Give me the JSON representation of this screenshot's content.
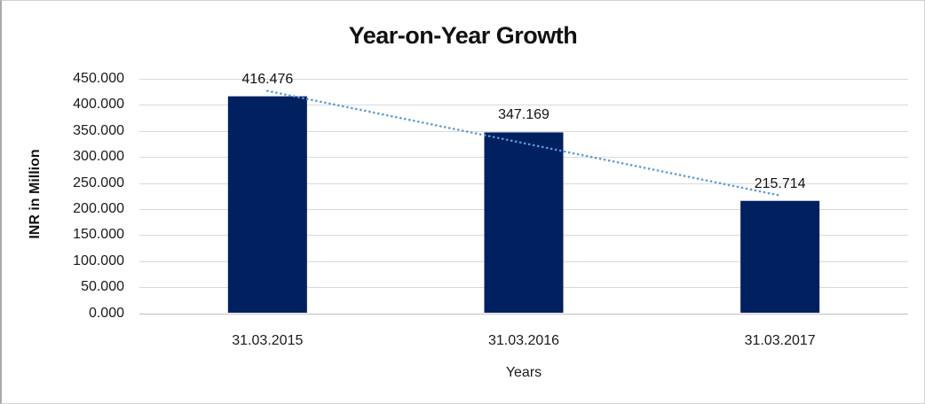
{
  "chart_data": {
    "type": "bar",
    "title": "Year-on-Year Growth",
    "xlabel": "Years",
    "ylabel": "INR in Million",
    "categories": [
      "31.03.2015",
      "31.03.2016",
      "31.03.2017"
    ],
    "values": [
      416.476,
      347.169,
      215.714
    ],
    "data_labels": [
      "416.476",
      "347.169",
      "215.714"
    ],
    "ylim": [
      0,
      450
    ],
    "ytick_step": 50,
    "ytick_labels": [
      "0.000",
      "50.000",
      "100.000",
      "150.000",
      "200.000",
      "250.000",
      "300.000",
      "350.000",
      "400.000",
      "450.000"
    ],
    "grid": true,
    "legend": "none",
    "bar_color": "#002060",
    "gridline_color": "#d9d9d9",
    "axis_line_color": "#c0c0c0",
    "trendline": {
      "type": "linear",
      "style": "dotted",
      "color": "#5b9bd5"
    }
  }
}
